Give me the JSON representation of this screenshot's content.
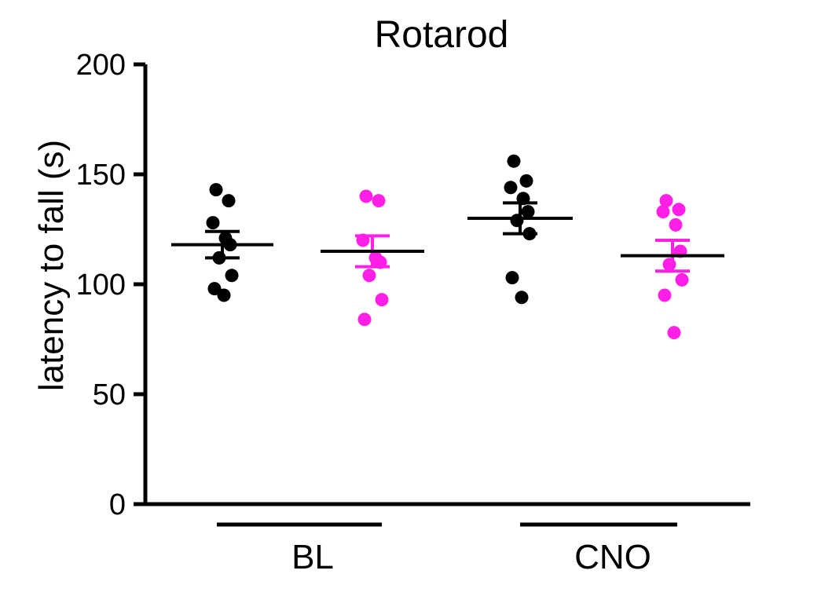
{
  "chart_data": {
    "type": "scatter",
    "title": "Rotarod",
    "ylabel": "latency to fall (s)",
    "xlabel": "",
    "ylim": [
      0,
      200
    ],
    "yticks": [
      0,
      50,
      100,
      150,
      200
    ],
    "ytick_labels": [
      "0",
      "50",
      "100",
      "150",
      "200"
    ],
    "groups": [
      {
        "label": "BL"
      },
      {
        "label": "CNO"
      }
    ],
    "series_colors": [
      "#000000",
      "#ff1fe6"
    ],
    "series": [
      {
        "group": "BL",
        "color": "#000000",
        "points": [
          143,
          138,
          128,
          121,
          118,
          112,
          104,
          98,
          95
        ],
        "mean": 118,
        "sem": [
          112,
          124
        ]
      },
      {
        "group": "BL",
        "color": "#ff1fe6",
        "points": [
          140,
          138,
          120,
          112,
          110,
          104,
          93,
          84
        ],
        "mean": 115,
        "sem": [
          108,
          122
        ]
      },
      {
        "group": "CNO",
        "color": "#000000",
        "points": [
          156,
          147,
          144,
          139,
          133,
          129,
          123,
          103,
          94
        ],
        "mean": 130,
        "sem": [
          123,
          137
        ]
      },
      {
        "group": "CNO",
        "color": "#ff1fe6",
        "points": [
          138,
          134,
          133,
          127,
          115,
          109,
          102,
          95,
          78
        ],
        "mean": 113,
        "sem": [
          106,
          120
        ]
      }
    ]
  }
}
